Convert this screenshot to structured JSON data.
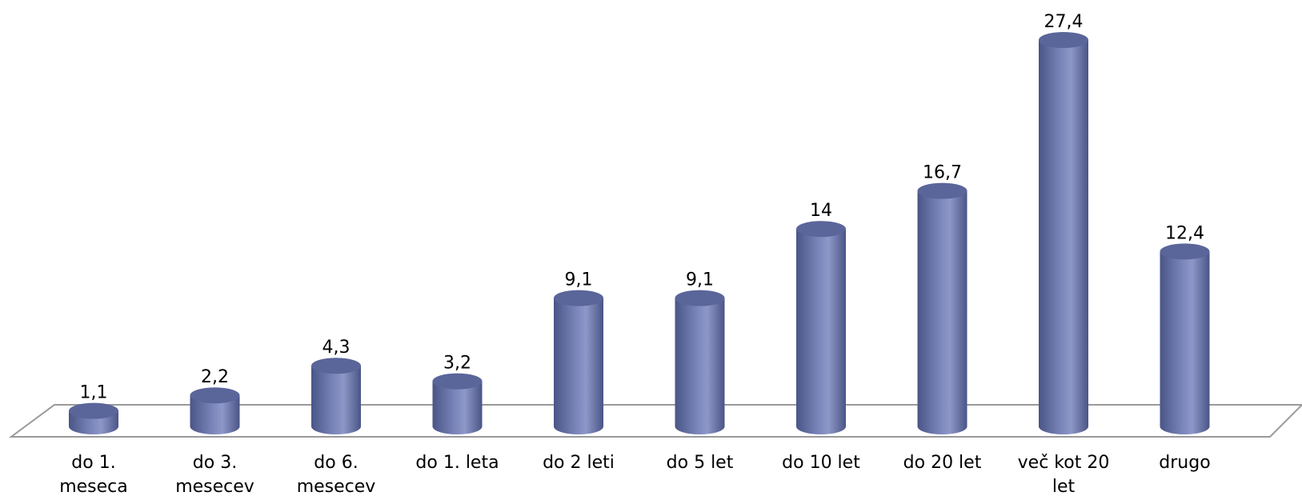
{
  "chart_data": {
    "type": "bar",
    "style": "3d-cylinder",
    "categories": [
      [
        "do 1.",
        "meseca"
      ],
      [
        "do 3.",
        "mesecev"
      ],
      [
        "do 6.",
        "mesecev"
      ],
      [
        "do 1. leta"
      ],
      [
        "do 2 leti"
      ],
      [
        "do 5 let"
      ],
      [
        "do 10 let"
      ],
      [
        "do 20 let"
      ],
      [
        "več kot 20",
        "let"
      ],
      [
        "drugo"
      ]
    ],
    "values": [
      1.1,
      2.2,
      4.3,
      3.2,
      9.1,
      9.1,
      14,
      16.7,
      27.4,
      12.4
    ],
    "value_labels": [
      "1,1",
      "2,2",
      "4,3",
      "3,2",
      "9,1",
      "9,1",
      "14",
      "16,7",
      "27,4",
      "12,4"
    ],
    "ylim": [
      0,
      27.4
    ],
    "grid": false,
    "colors": {
      "bar_dark": "#4a5587",
      "bar_mid": "#7580b5",
      "bar_light": "#8e98c8",
      "bar_top": "#5a659a",
      "floor": "#9a9a9a"
    }
  }
}
